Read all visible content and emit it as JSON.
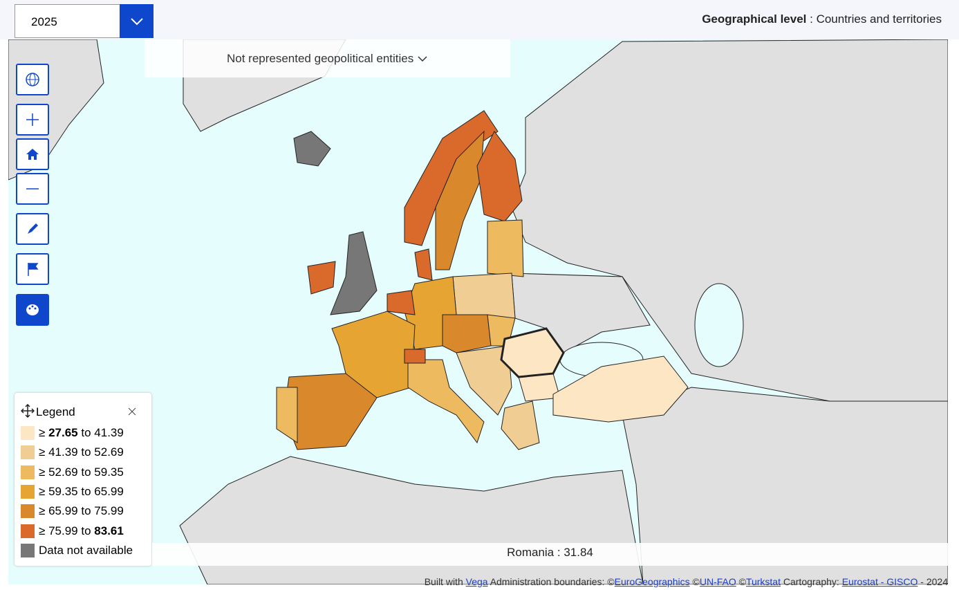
{
  "header": {
    "year": "2025",
    "geo_label": "Geographical level",
    "geo_value": ": Countries and territories"
  },
  "map": {
    "not_represented": "Not represented geopolitical entities",
    "tooltip": {
      "name": "Romania",
      "separator": ":",
      "value": "31.84"
    }
  },
  "legend": {
    "title": "Legend",
    "items": [
      {
        "symbol": "≥",
        "from": 27.65,
        "word": "to",
        "to": 41.39,
        "color": "#fde6c4"
      },
      {
        "symbol": "≥",
        "from": 41.39,
        "word": "to",
        "to": 52.69,
        "color": "#f0cd92"
      },
      {
        "symbol": "≥",
        "from": 52.69,
        "word": "to",
        "to": 59.35,
        "color": "#edba60"
      },
      {
        "symbol": "≥",
        "from": 59.35,
        "word": "to",
        "to": 65.99,
        "color": "#e6a533"
      },
      {
        "symbol": "≥",
        "from": 65.99,
        "word": "to",
        "to": 75.99,
        "color": "#d9892c"
      },
      {
        "symbol": "≥",
        "from": 75.99,
        "word": "to",
        "to": 83.61,
        "color": "#d96a2c"
      }
    ],
    "na": {
      "label": "Data not available",
      "color": "#777777"
    }
  },
  "footer": {
    "built": "Built with",
    "vega": "Vega",
    "admin": "Administration boundaries: ©",
    "eg": "EuroGeographics",
    "c1": "©",
    "fao": "UN-FAO",
    "c2": "©",
    "turkstat": "Turkstat",
    "carto": "Cartography:",
    "gisco": "Eurostat - GISCO",
    "year": "- 2024"
  }
}
